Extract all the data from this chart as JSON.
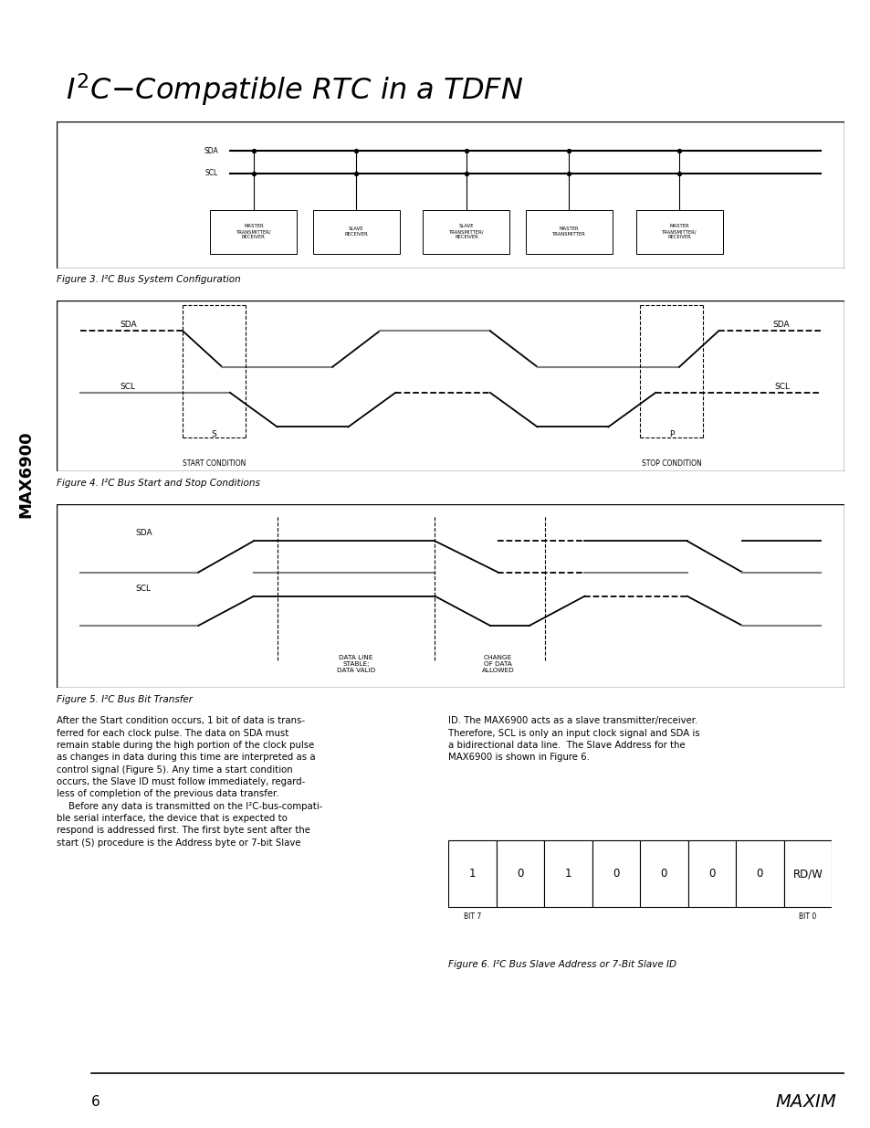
{
  "bg_color": "#ffffff",
  "fig3_caption": "Figure 3. I²C Bus System Configuration",
  "fig4_caption": "Figure 4. I²C Bus Start and Stop Conditions",
  "fig5_caption": "Figure 5. I²C Bus Bit Transfer",
  "fig6_caption": "Figure 6. I²C Bus Slave Address or 7-Bit Slave ID",
  "sidebar_text": "MAX6900",
  "page_num": "6",
  "fig3_boxes": [
    "MASTER\nTRANSMITTER/\nRECEIVER",
    "SLAVE\nRECEIVER",
    "SLAVE\nTRANSMITTER/\nRECEIVER",
    "MASTER\nTRANSMITTER",
    "MASTER\nTRANSMITTER/\nRECEIVER"
  ],
  "fig6_bits": [
    "1",
    "0",
    "1",
    "0",
    "0",
    "0",
    "0",
    "RD/W"
  ],
  "fig6_bit_labels": [
    "BIT 7",
    "",
    "",
    "",
    "",
    "",
    "",
    "BIT 0"
  ],
  "body_left": "After the Start condition occurs, 1 bit of data is trans-\nferred for each clock pulse. The data on SDA must\nremain stable during the high portion of the clock pulse\nas changes in data during this time are interpreted as a\ncontrol signal (Figure 5). Any time a start condition\noccurs, the Slave ID must follow immediately, regard-\nless of completion of the previous data transfer.\n    Before any data is transmitted on the I²C-bus-compati-\nble serial interface, the device that is expected to\nrespond is addressed first. The first byte sent after the\nstart (S) procedure is the Address byte or 7-bit Slave",
  "body_right": "ID. The MAX6900 acts as a slave transmitter/receiver.\nTherefore, SCL is only an input clock signal and SDA is\na bidirectional data line.  The Slave Address for the\nMAX6900 is shown in Figure 6."
}
